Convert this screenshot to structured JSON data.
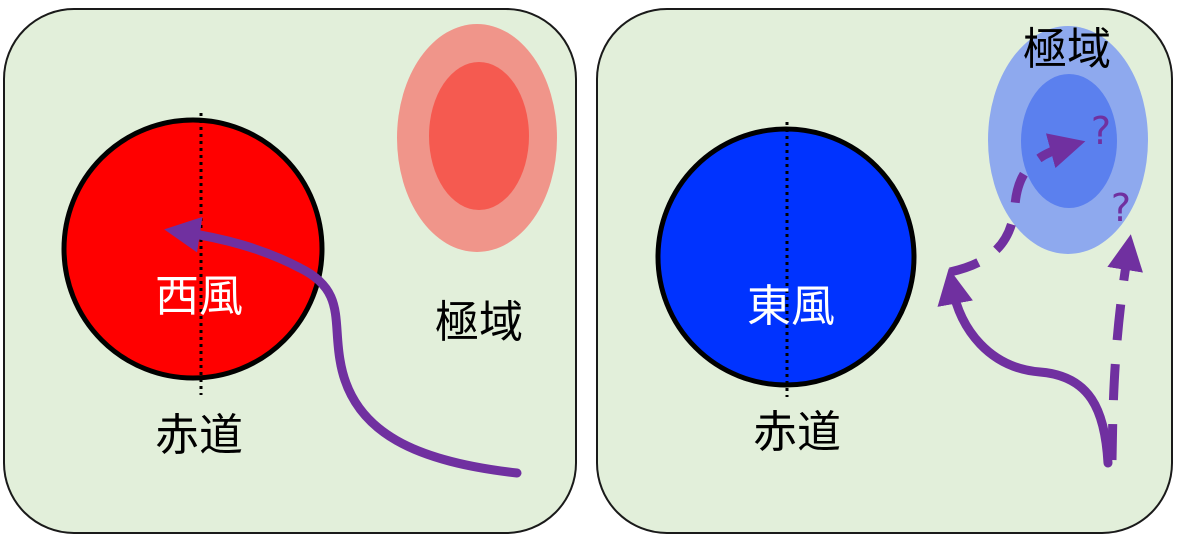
{
  "colors": {
    "panel_fill": "#e2efda",
    "panel_stroke": "#1a1a1a",
    "westerly_circle": "#ff0000",
    "easterly_circle": "#0033ff",
    "arrow": "#7030a0",
    "polar_left_outer": "#f0958a",
    "polar_left_inner": "#f55a50",
    "polar_right_outer": "#8ea9ee",
    "polar_right_inner": "#5b80ee"
  },
  "left_panel": {
    "wind_label": "西風",
    "equator_label": "赤道",
    "polar_label": "極域"
  },
  "right_panel": {
    "wind_label": "東風",
    "equator_label": "赤道",
    "polar_label": "極域",
    "question_mark_1": "?",
    "question_mark_2": "?"
  }
}
